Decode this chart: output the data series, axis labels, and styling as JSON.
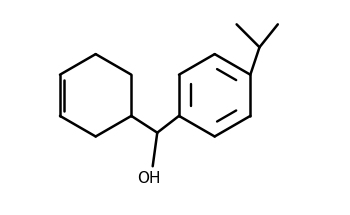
{
  "bg_color": "#ffffff",
  "line_color": "#000000",
  "line_width": 1.8,
  "oh_text": "OH",
  "font_size": 11,
  "figsize": [
    3.5,
    2.15
  ],
  "dpi": 100,
  "xlim": [
    0,
    10
  ],
  "ylim": [
    0,
    7
  ]
}
